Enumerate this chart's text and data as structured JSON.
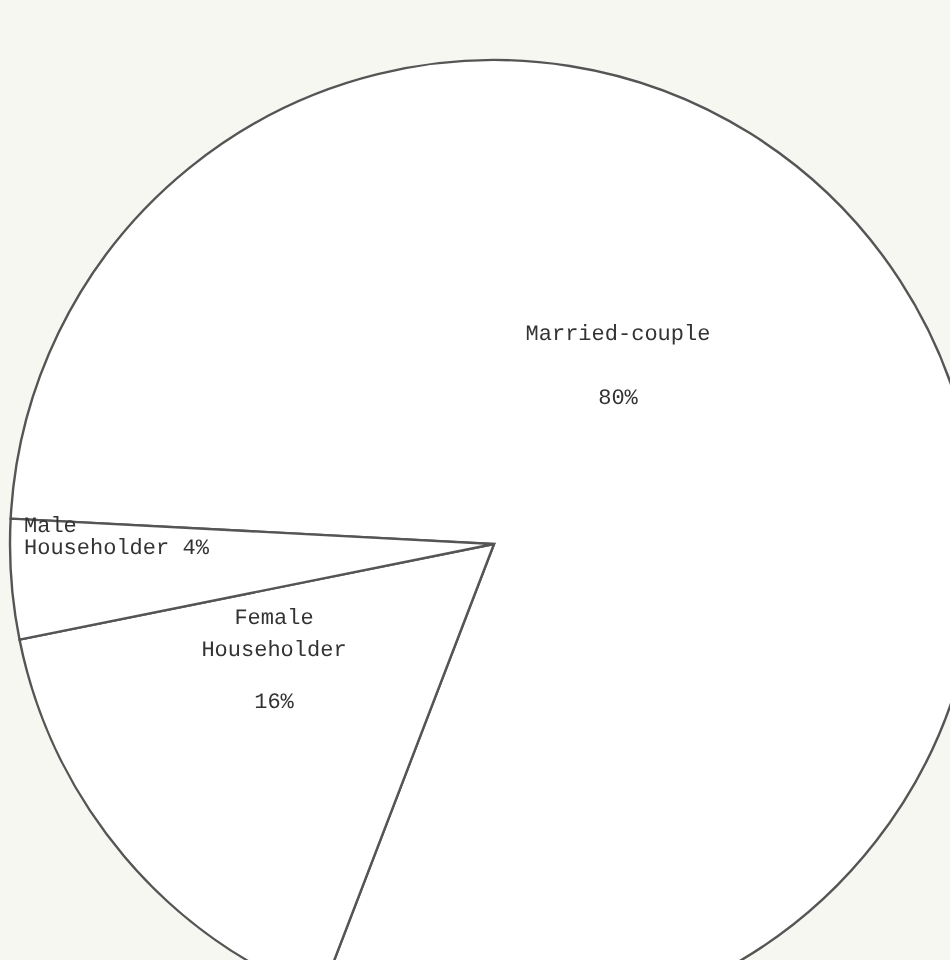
{
  "chart_data": {
    "type": "pie",
    "categories": [
      "Married-couple",
      "Female Householder",
      "Male Householder"
    ],
    "values": [
      80,
      16,
      4
    ],
    "value_labels": [
      "80%",
      "16%",
      "4%"
    ],
    "colors": [
      "#ffffff",
      "#ffffff",
      "#ffffff"
    ]
  }
}
